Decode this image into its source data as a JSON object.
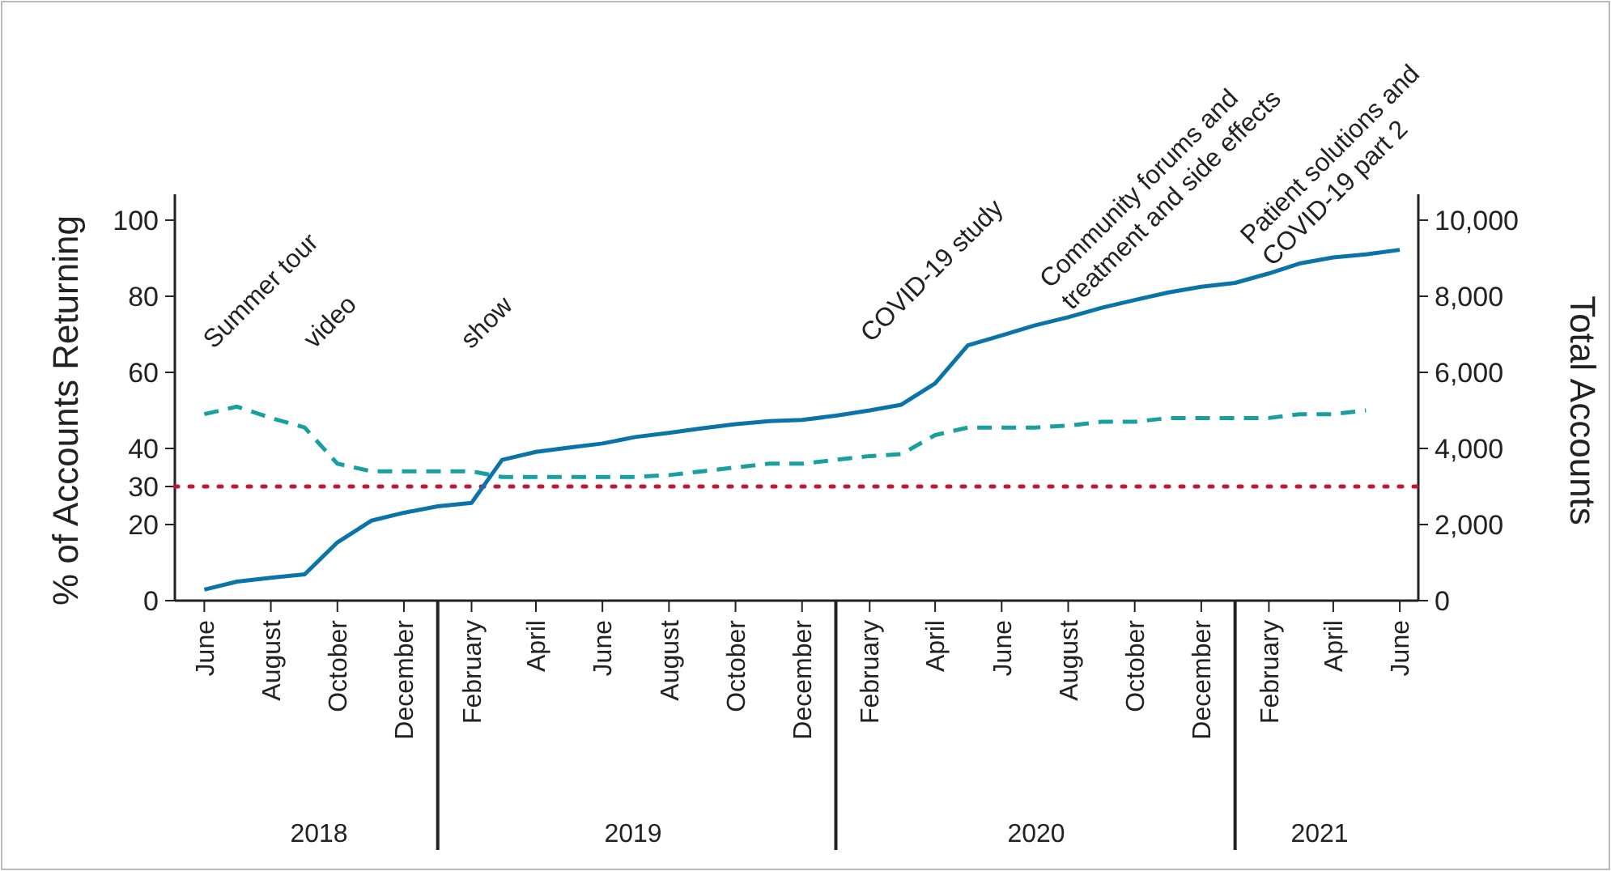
{
  "chart_data": {
    "type": "line",
    "ylabel": "% of Accounts Returning",
    "y2label": "Total Accounts",
    "x": [
      "2018-06",
      "2018-07",
      "2018-08",
      "2018-09",
      "2018-10",
      "2018-11",
      "2018-12",
      "2019-01",
      "2019-02",
      "2019-03",
      "2019-04",
      "2019-05",
      "2019-06",
      "2019-07",
      "2019-08",
      "2019-09",
      "2019-10",
      "2019-11",
      "2019-12",
      "2020-01",
      "2020-02",
      "2020-03",
      "2020-04",
      "2020-05",
      "2020-06",
      "2020-07",
      "2020-08",
      "2020-09",
      "2020-10",
      "2020-11",
      "2020-12",
      "2021-01",
      "2021-02",
      "2021-03",
      "2021-04",
      "2021-05",
      "2021-06"
    ],
    "series": [
      {
        "color": "#1a9fa0",
        "line_style": "dashed",
        "values": [
          49,
          51,
          48,
          45.5,
          36,
          34,
          34,
          34,
          34,
          32.5,
          32.5,
          32.5,
          32.5,
          32.5,
          33,
          34,
          35,
          36,
          36,
          37,
          38,
          38.5,
          43.5,
          45.5,
          45.5,
          45.5,
          46,
          47,
          47,
          48,
          48,
          48,
          48,
          49,
          49,
          50,
          null
        ]
      },
      {
        "color": "#0a74a8",
        "line_style": "solid",
        "axis": "y2",
        "values": [
          290,
          500,
          600,
          690,
          1530,
          2100,
          2310,
          2480,
          2570,
          3700,
          3910,
          4020,
          4130,
          4300,
          4410,
          4530,
          4640,
          4720,
          4750,
          4860,
          5000,
          5150,
          5710,
          6710,
          6970,
          7230,
          7450,
          7700,
          7900,
          8100,
          8250,
          8350,
          8600,
          8860,
          9020,
          9100,
          9220
        ]
      }
    ],
    "xlim": [
      "2018-05-05",
      "2021-06-18"
    ],
    "xticks": [
      {
        "value": "2018-06",
        "label": "June"
      },
      {
        "value": "2018-08",
        "label": "August"
      },
      {
        "value": "2018-10",
        "label": "October"
      },
      {
        "value": "2018-12",
        "label": "December"
      },
      {
        "value": "2019-02",
        "label": "February"
      },
      {
        "value": "2019-04",
        "label": "April"
      },
      {
        "value": "2019-06",
        "label": "June"
      },
      {
        "value": "2019-08",
        "label": "August"
      },
      {
        "value": "2019-10",
        "label": "October"
      },
      {
        "value": "2019-12",
        "label": "December"
      },
      {
        "value": "2020-02",
        "label": "February"
      },
      {
        "value": "2020-04",
        "label": "April"
      },
      {
        "value": "2020-06",
        "label": "June"
      },
      {
        "value": "2020-08",
        "label": "August"
      },
      {
        "value": "2020-10",
        "label": "October"
      },
      {
        "value": "2020-12",
        "label": "December"
      },
      {
        "value": "2021-02",
        "label": "February"
      },
      {
        "value": "2021-04",
        "label": "April"
      },
      {
        "value": "2021-06",
        "label": "June"
      }
    ],
    "ylim": [
      0,
      106.8
    ],
    "yticks": [
      0,
      20,
      30,
      40,
      60,
      80,
      100
    ],
    "y2lim": [
      0,
      10680
    ],
    "y2ticks": [
      {
        "value": 0,
        "label": "0"
      },
      {
        "value": 2000,
        "label": "2,000"
      },
      {
        "value": 4000,
        "label": "4,000"
      },
      {
        "value": 6000,
        "label": "6,000"
      },
      {
        "value": 8000,
        "label": "8,000"
      },
      {
        "value": 10000,
        "label": "10,000"
      }
    ],
    "ref_lines": [
      {
        "axis": "y",
        "value": 30,
        "color": "#c0163a",
        "line_style": "dotted"
      }
    ],
    "grid": false,
    "marker": "none",
    "annotations": [
      "Summer tour",
      "video",
      "show",
      "COVID-19 study",
      "Community forums and\ntreatment and side effects",
      "Patient solutions and\nCOVID-19 part 2",
      "2018",
      "2019",
      "2020",
      "2021"
    ]
  }
}
